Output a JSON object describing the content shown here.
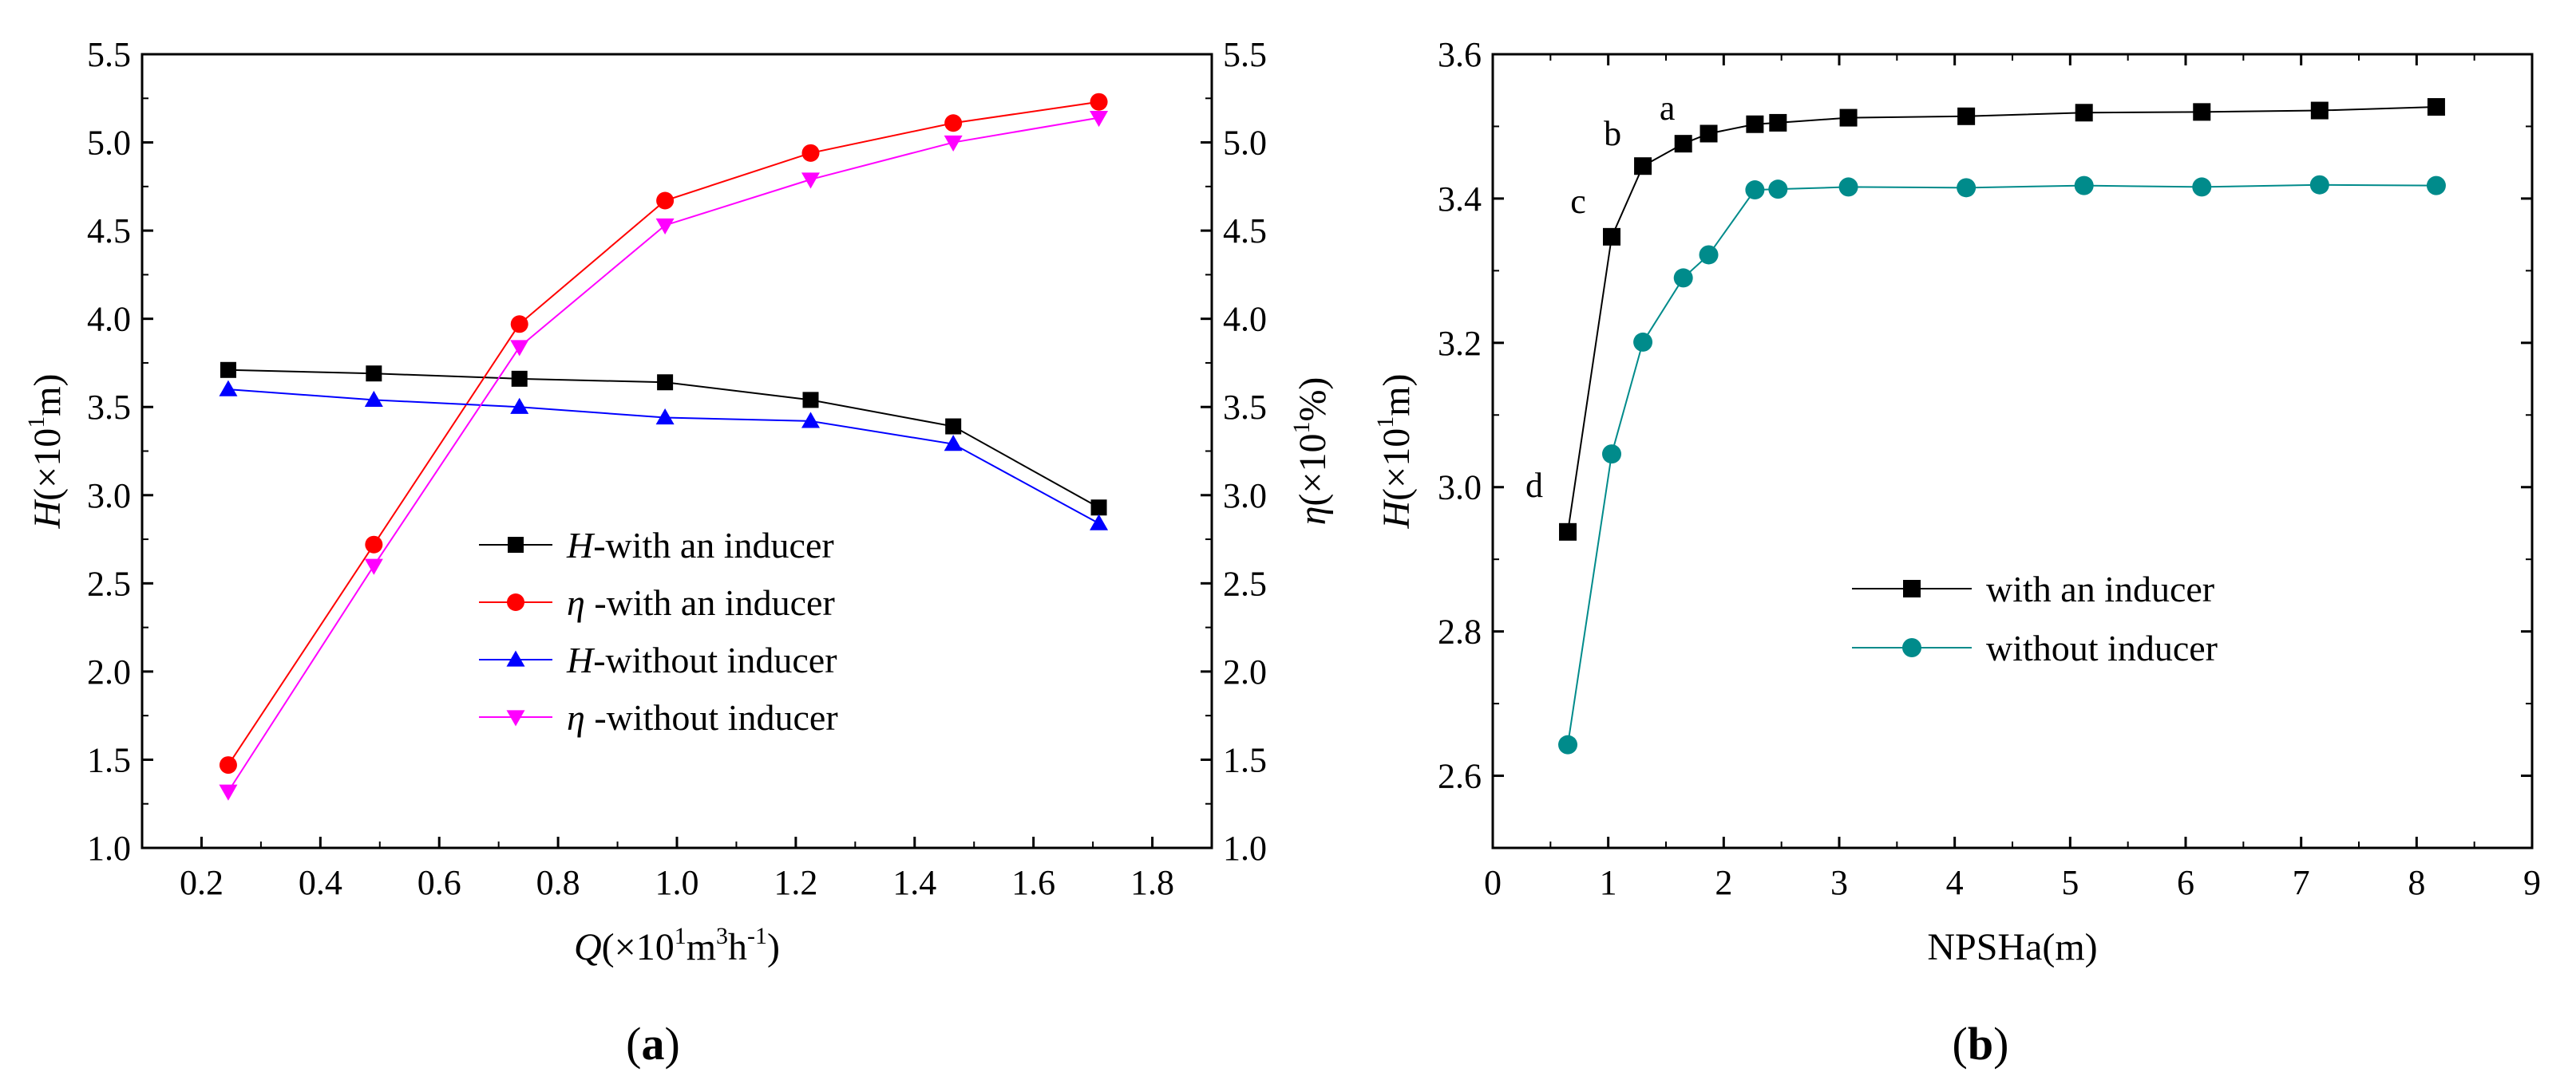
{
  "chart_data": [
    {
      "type": "line",
      "panel_label": "a",
      "xlabel": {
        "sym": "Q",
        "pre": "(×10",
        "sup1": "1",
        "mid": "m",
        "sup2": "3",
        "mid2": "h",
        "sup3": "-1",
        "post": ")"
      },
      "ylabel_left": {
        "sym": "H",
        "pre": "(×10",
        "sup": "1",
        "post": "m)"
      },
      "ylabel_right": {
        "sym": "η",
        "pre": "(×10",
        "sup": "1",
        "post": "%)"
      },
      "xlim": [
        0.1,
        1.9
      ],
      "ylim": [
        1.0,
        5.5
      ],
      "xticks": [
        "0.2",
        "0.4",
        "0.6",
        "0.8",
        "1.0",
        "1.2",
        "1.4",
        "1.6",
        "1.8"
      ],
      "yticks": [
        "1.0",
        "1.5",
        "2.0",
        "2.5",
        "3.0",
        "3.5",
        "4.0",
        "4.5",
        "5.0",
        "5.5"
      ],
      "x": [
        0.245,
        0.49,
        0.735,
        0.98,
        1.225,
        1.465,
        1.71
      ],
      "series": [
        {
          "name": "H-with an inducer",
          "sym": "H",
          "rest": "-with an inducer",
          "color": "#000000",
          "marker": "square",
          "values": [
            3.71,
            3.69,
            3.66,
            3.64,
            3.54,
            3.39,
            2.93
          ]
        },
        {
          "name": "η -with an inducer",
          "sym": "η",
          "rest": " -with an inducer",
          "color": "#ff0000",
          "marker": "circle",
          "values": [
            1.47,
            2.72,
            3.97,
            4.67,
            4.94,
            5.11,
            5.23
          ]
        },
        {
          "name": "H-without inducer",
          "sym": "H",
          "rest": "-without inducer",
          "color": "#0000ff",
          "marker": "triangle-up",
          "values": [
            3.6,
            3.54,
            3.5,
            3.44,
            3.42,
            3.29,
            2.84
          ]
        },
        {
          "name": "η -without inducer",
          "sym": "η",
          "rest": " -without inducer",
          "color": "#ff00ff",
          "marker": "triangle-down",
          "values": [
            1.32,
            2.6,
            3.84,
            4.53,
            4.79,
            5.0,
            5.14
          ]
        }
      ],
      "legend_position": "center-right"
    },
    {
      "type": "line",
      "panel_label": "b",
      "xlabel": "NPSHa(m)",
      "ylabel": {
        "sym": "H",
        "pre": "(×10",
        "sup": "1",
        "post": "m)"
      },
      "xlim": [
        0,
        9
      ],
      "ylim": [
        2.5,
        3.6
      ],
      "xticks": [
        "0",
        "1",
        "2",
        "3",
        "4",
        "5",
        "6",
        "7",
        "8",
        "9"
      ],
      "yticks": [
        "2.6",
        "2.8",
        "3.0",
        "3.2",
        "3.4",
        "3.6"
      ],
      "series": [
        {
          "name": "with an inducer",
          "color": "#000000",
          "marker": "square",
          "x": [
            0.65,
            1.03,
            1.3,
            1.65,
            1.87,
            2.27,
            2.47,
            3.08,
            4.1,
            5.12,
            6.14,
            7.16,
            8.17
          ],
          "values": [
            2.938,
            3.347,
            3.445,
            3.476,
            3.49,
            3.503,
            3.505,
            3.512,
            3.514,
            3.519,
            3.52,
            3.522,
            3.527
          ]
        },
        {
          "name": "without inducer",
          "color": "#008b8b",
          "marker": "circle",
          "x": [
            0.65,
            1.03,
            1.3,
            1.65,
            1.87,
            2.27,
            2.47,
            3.08,
            4.1,
            5.12,
            6.14,
            7.16,
            8.17
          ],
          "values": [
            2.643,
            3.046,
            3.201,
            3.29,
            3.322,
            3.412,
            3.413,
            3.416,
            3.415,
            3.418,
            3.416,
            3.419,
            3.418
          ]
        }
      ],
      "point_labels": [
        {
          "text": "a",
          "series": 0,
          "index": 3
        },
        {
          "text": "b",
          "series": 0,
          "index": 2
        },
        {
          "text": "c",
          "series": 0,
          "index": 1
        },
        {
          "text": "d",
          "series": 0,
          "index": 0
        }
      ],
      "legend_position": "center-right"
    }
  ]
}
